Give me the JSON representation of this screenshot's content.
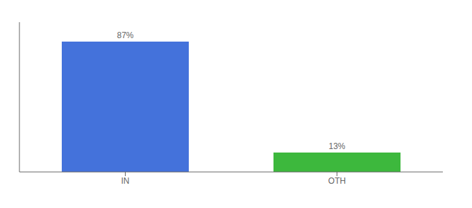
{
  "chart_data": {
    "type": "bar",
    "categories": [
      "IN",
      "OTH"
    ],
    "values": [
      87,
      13
    ],
    "colors": [
      "#4472db",
      "#3db83d"
    ],
    "value_labels": [
      "87%",
      "13%"
    ],
    "data_labels": true,
    "ylim": [
      0,
      100
    ],
    "tick_labels": "x",
    "grid": false
  }
}
